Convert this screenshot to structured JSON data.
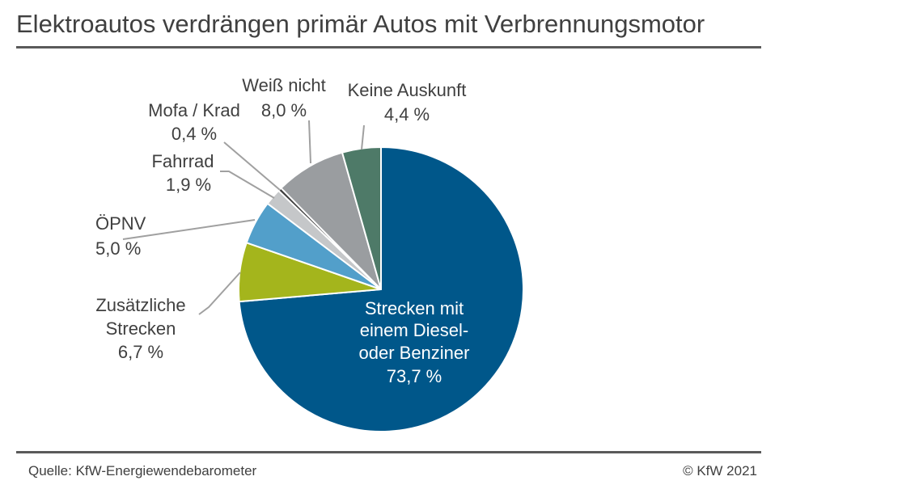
{
  "title": "Elektroautos verdrängen primär Autos mit Verbrennungsmotor",
  "footer": {
    "source": "Quelle: KfW-Energiewendebarometer",
    "copyright": "© KfW 2021"
  },
  "chart_data": {
    "type": "pie",
    "title": "Elektroautos verdrängen primär Autos mit Verbrennungsmotor",
    "start": "12 o'clock",
    "direction": "clockwise",
    "slices": [
      {
        "label": [
          "Strecken mit",
          "einem Diesel-",
          "oder Benziner"
        ],
        "value_label": "73,7 %",
        "value": 73.7,
        "color": "#00578a"
      },
      {
        "label": [
          "Zusätzliche",
          "Strecken"
        ],
        "value_label": "6,7 %",
        "value": 6.7,
        "color": "#a4b51c"
      },
      {
        "label": [
          "ÖPNV"
        ],
        "value_label": "5,0 %",
        "value": 5.0,
        "color": "#529fca"
      },
      {
        "label": [
          "Fahrrad"
        ],
        "value_label": "1,9 %",
        "value": 1.9,
        "color": "#c5c7c9"
      },
      {
        "label": [
          "Mofa / Krad"
        ],
        "value_label": "0,4 %",
        "value": 0.4,
        "color": "#3c3c3c"
      },
      {
        "label": [
          "Weiß nicht"
        ],
        "value_label": "8,0 %",
        "value": 8.0,
        "color": "#9a9da0"
      },
      {
        "label": [
          "Keine Auskunft"
        ],
        "value_label": "4,4 %",
        "value": 4.4,
        "color": "#4e7a68"
      }
    ]
  }
}
